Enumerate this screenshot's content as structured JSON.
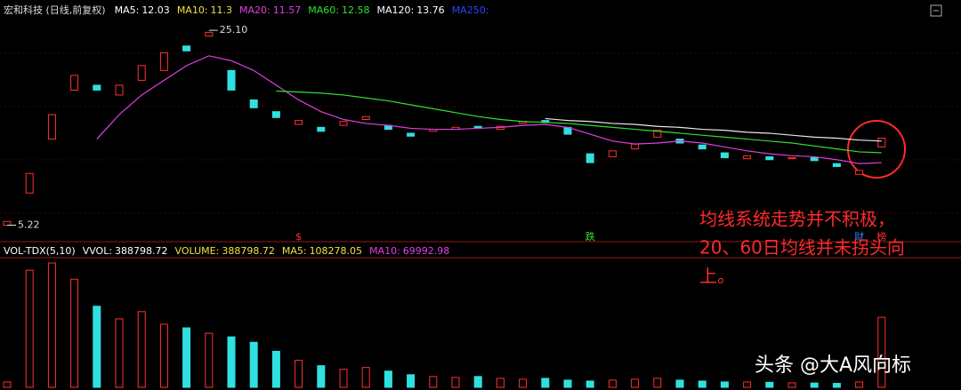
{
  "chart_data": [
    {
      "type": "candlestick",
      "title": "宏和科技 (日线,前复权)",
      "legend": [
        {
          "label": "MA5:",
          "value": 12.03,
          "color": "#ffffff"
        },
        {
          "label": "MA10:",
          "value": 11.3,
          "color": "#f0e040"
        },
        {
          "label": "MA20:",
          "value": 11.57,
          "color": "#e040e0"
        },
        {
          "label": "MA60:",
          "value": 12.58,
          "color": "#30e030"
        },
        {
          "label": "MA120:",
          "value": 13.76,
          "color": "#ffffff"
        },
        {
          "label": "MA250:",
          "color": "#3040ff"
        }
      ],
      "ylim": [
        3.9,
        26.2
      ],
      "up_color": "#ff3030",
      "down_color": "#30e0e0",
      "open": [
        5.2,
        8.5,
        14,
        19,
        19.5,
        18.5,
        20,
        21,
        23.5,
        24.5,
        21,
        18,
        16.8,
        15.5,
        15.2,
        15.4,
        16.0,
        15.4,
        14.6,
        14.8,
        15.0,
        15.3,
        15.0,
        15.6,
        15.9,
        15.2,
        12.5,
        12.2,
        13.0,
        14.2,
        14.0,
        13.4,
        12.6,
        12.0,
        12.2,
        12.0,
        12.1,
        11.5,
        10.4,
        13.2
      ],
      "close": [
        5.6,
        10.5,
        16.5,
        20.5,
        19.0,
        19.5,
        21.5,
        22.8,
        23,
        24.9,
        19,
        17.2,
        16.2,
        15.9,
        14.8,
        15.8,
        16.3,
        15.0,
        14.3,
        15.0,
        15.2,
        15.1,
        15.3,
        15.8,
        15.7,
        14.5,
        11.6,
        12.8,
        13.5,
        14.9,
        13.6,
        13.0,
        12.1,
        12.3,
        11.9,
        12.1,
        11.8,
        11.2,
        10.8,
        14.1
      ],
      "series": [
        {
          "name": "MA20",
          "color": "#e040e0",
          "values": [
            null,
            null,
            null,
            null,
            14,
            16.5,
            18.5,
            20,
            21.5,
            22.5,
            22,
            21,
            19.5,
            18,
            16.8,
            16,
            15.6,
            15.4,
            15.1,
            15,
            15,
            15.1,
            15.2,
            15.4,
            15.5,
            15.2,
            14.5,
            13.8,
            13.5,
            13.6,
            13.8,
            13.6,
            13.2,
            12.8,
            12.5,
            12.3,
            12.2,
            11.9,
            11.5,
            11.6
          ]
        },
        {
          "name": "MA60",
          "color": "#30e030",
          "values": [
            null,
            null,
            null,
            null,
            null,
            null,
            null,
            null,
            null,
            null,
            null,
            null,
            18.9,
            18.8,
            18.7,
            18.5,
            18.2,
            17.9,
            17.5,
            17.1,
            16.7,
            16.3,
            16.0,
            15.8,
            15.7,
            15.6,
            15.4,
            15.2,
            15.0,
            14.8,
            14.6,
            14.4,
            14.2,
            14.0,
            13.8,
            13.6,
            13.3,
            13.0,
            12.7,
            12.6
          ]
        },
        {
          "name": "MA120",
          "color": "#e8e8e8",
          "values": [
            null,
            null,
            null,
            null,
            null,
            null,
            null,
            null,
            null,
            null,
            null,
            null,
            null,
            null,
            null,
            null,
            null,
            null,
            null,
            null,
            null,
            null,
            null,
            null,
            16.1,
            15.9,
            15.8,
            15.6,
            15.5,
            15.3,
            15.2,
            15.0,
            14.9,
            14.7,
            14.6,
            14.4,
            14.2,
            14.1,
            13.9,
            13.8
          ]
        }
      ],
      "annotations": [
        {
          "text": "25.10",
          "value": 25.1,
          "index": 9
        },
        {
          "text": "5.22",
          "value": 5.22,
          "index": 0
        }
      ],
      "markers": [
        {
          "text": "$",
          "color": "#ff3030",
          "index": 13
        },
        {
          "text": "跌",
          "color": "#30e030",
          "index": 26
        },
        {
          "text": "财",
          "color": "#3080ff",
          "index": 38
        },
        {
          "text": "榜",
          "color": "#ff3030",
          "index": 39
        }
      ]
    },
    {
      "type": "volume",
      "legend": [
        {
          "label": "VOL-TDX(5,10)",
          "color": "#ffffff"
        },
        {
          "label": "VVOL:",
          "value": 388798.72,
          "color": "#ffffff"
        },
        {
          "label": "VOLUME:",
          "value": 388798.72,
          "color": "#f0e040"
        },
        {
          "label": "MA5:",
          "value": 108278.05,
          "color": "#f0e040"
        },
        {
          "label": "MA10:",
          "value": 69992.98,
          "color": "#e040e0"
        }
      ],
      "ylim": [
        0,
        700000
      ],
      "values": [
        30000,
        650000,
        690000,
        600000,
        450000,
        380000,
        420000,
        350000,
        330000,
        300000,
        280000,
        250000,
        200000,
        150000,
        120000,
        100000,
        110000,
        90000,
        70000,
        60000,
        55000,
        60000,
        50000,
        45000,
        50000,
        40000,
        35000,
        40000,
        45000,
        50000,
        40000,
        35000,
        30000,
        30000,
        28000,
        25000,
        24000,
        22000,
        30000,
        388798.72
      ]
    }
  ],
  "note": {
    "lines": [
      "均线系统走势并不积极，",
      "20、60日均线并未拐头向",
      "上。"
    ]
  },
  "watermark": "头条 @大A风向标"
}
